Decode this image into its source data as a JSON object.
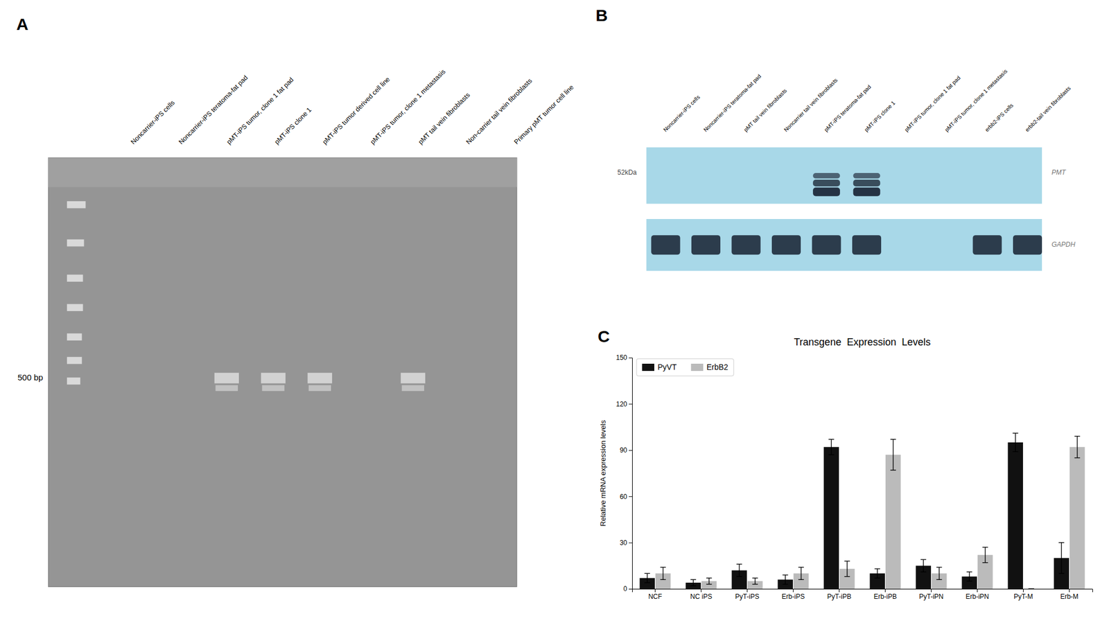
{
  "chart_data": [
    {
      "type": "gel",
      "annotations": [
        "A"
      ],
      "categories": [
        "Noncarrier-iPS cells",
        "Noncarrier-iPS teratoma-fat pad",
        "pMT-iPS tumor, clone 1 fat pad",
        "pMT-iPS clone 1",
        "pMT-iPS tumor derived cell line",
        "pMT-iPS tumor, clone 1 metastasis",
        "pMT tail vein fibroblasts",
        "Non-carrier tail vein fibroblasts",
        "Primary pMT tumor cell line"
      ],
      "series": [
        {
          "name": "500 bp",
          "color": "#d8d8d8",
          "values": [
            0,
            0,
            1,
            1,
            1,
            0,
            1,
            0,
            0
          ]
        }
      ]
    },
    {
      "type": "blot",
      "annotations": [
        "B",
        "52kDa"
      ],
      "categories": [
        "Noncarrier-iPS cells",
        "Noncarrier-iPS teratoma-fat pad",
        "pMT tail vein fibroblasts",
        "Noncarrier tail vein fibroblasts",
        "pMT-iPS teratoma-fat pad",
        "pMT-iPS clone 1",
        "pMT-iPS tumor, clone 1 fat pad",
        "pMT-iPS tumor, clone 1 metastasis",
        "erbb2-iPS cells",
        "erbb2-tail vein fibroblasts"
      ],
      "series": [
        {
          "name": "PMT",
          "color": "#1a2535",
          "values": [
            0,
            0,
            0,
            0,
            1,
            1,
            0,
            0,
            0,
            0
          ]
        },
        {
          "name": "GAPDH",
          "color": "#1a2535",
          "values": [
            1,
            1,
            1,
            1,
            1,
            1,
            0,
            0,
            1,
            1
          ]
        }
      ]
    },
    {
      "type": "bar",
      "title": "Transgene  Expression  Levels",
      "annotations": [
        "C"
      ],
      "y_label": "Relative mRNA expression levels",
      "categories": [
        "NCF",
        "NC iPS",
        "PyT-iPS",
        "Erb-iPS",
        "PyT-iPB",
        "Erb-iPB",
        "PyT-iPN",
        "Erb-iPN",
        "PyT-M",
        "Erb-M"
      ],
      "series": [
        {
          "name": "PyVT",
          "color": "#111111",
          "values": [
            7,
            4,
            12,
            6,
            92,
            10,
            15,
            8,
            95,
            20
          ],
          "errors": [
            3,
            2,
            4,
            3,
            5,
            3,
            4,
            3,
            6,
            10
          ]
        },
        {
          "name": "ErbB2",
          "color": "#bbbbbb",
          "values": [
            10,
            5,
            5,
            10,
            13,
            87,
            10,
            22,
            0,
            92
          ],
          "errors": [
            4,
            2,
            2,
            4,
            5,
            10,
            4,
            5,
            0,
            7
          ]
        }
      ],
      "ylim": [
        0,
        150
      ],
      "yticks": [
        0,
        30,
        60,
        90,
        120,
        150
      ],
      "legend": "upper left",
      "grid": false
    }
  ]
}
